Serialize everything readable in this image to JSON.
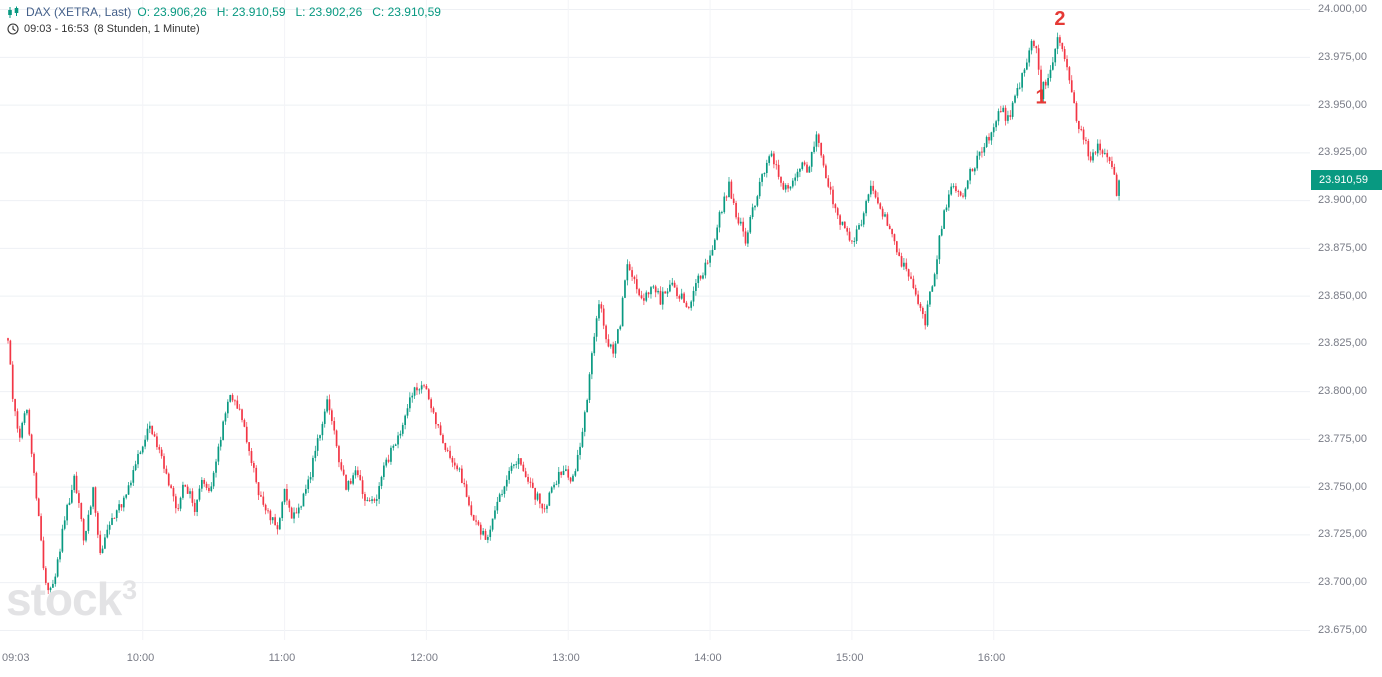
{
  "header": {
    "symbol": "DAX (XETRA, Last)",
    "o_label": "O:",
    "o_value": "23.906,26",
    "h_label": "H:",
    "h_value": "23.910,59",
    "l_label": "L:",
    "l_value": "23.902,26",
    "c_label": "C:",
    "c_value": "23.910,59",
    "session": "09:03 - 16:53",
    "timeframe": "(8 Stunden, 1 Minute)"
  },
  "watermark": {
    "text": "stock",
    "sup": "3"
  },
  "price_badge": {
    "text": "23.910,59",
    "color": "#089981"
  },
  "chart_data": {
    "type": "candlestick",
    "title": "DAX (XETRA, Last)",
    "symbol": "DAX",
    "exchange": "XETRA",
    "interval": "1 Minute",
    "session": "09:03 - 16:53",
    "session_length": "8 Stunden",
    "ohlc": {
      "open": 23906.26,
      "high": 23910.59,
      "low": 23902.26,
      "close": 23910.59
    },
    "last_price": 23910.59,
    "ylim": [
      23670,
      24005
    ],
    "grid": true,
    "up_color": "#089981",
    "down_color": "#f23645",
    "grid_color_h": "#eef0f4",
    "grid_color_v": "#f3f4f7",
    "axis_text_color": "#787b86",
    "y_ticks": [
      {
        "value": 24000,
        "label": "24.000,00"
      },
      {
        "value": 23975,
        "label": "23.975,00"
      },
      {
        "value": 23950,
        "label": "23.950,00"
      },
      {
        "value": 23925,
        "label": "23.925,00"
      },
      {
        "value": 23900,
        "label": "23.900,00"
      },
      {
        "value": 23875,
        "label": "23.875,00"
      },
      {
        "value": 23850,
        "label": "23.850,00"
      },
      {
        "value": 23825,
        "label": "23.825,00"
      },
      {
        "value": 23800,
        "label": "23.800,00"
      },
      {
        "value": 23775,
        "label": "23.775,00"
      },
      {
        "value": 23750,
        "label": "23.750,00"
      },
      {
        "value": 23725,
        "label": "23.725,00"
      },
      {
        "value": 23700,
        "label": "23.700,00"
      },
      {
        "value": 23675,
        "label": "23.675,00"
      }
    ],
    "x_ticks": [
      {
        "t": 0,
        "label": "09:03"
      },
      {
        "t": 57,
        "label": "10:00"
      },
      {
        "t": 117,
        "label": "11:00"
      },
      {
        "t": 177,
        "label": "12:00"
      },
      {
        "t": 237,
        "label": "13:00"
      },
      {
        "t": 297,
        "label": "14:00"
      },
      {
        "t": 357,
        "label": "15:00"
      },
      {
        "t": 417,
        "label": "16:00"
      }
    ],
    "minutes_total": 470,
    "annotations": [
      {
        "label": "1",
        "t": 437,
        "price": 23955,
        "color": "#e53935"
      },
      {
        "label": "2",
        "t": 445,
        "price": 23996,
        "color": "#e53935"
      }
    ],
    "price_path_anchors": [
      [
        0,
        23828
      ],
      [
        2,
        23795
      ],
      [
        5,
        23775
      ],
      [
        8,
        23792
      ],
      [
        12,
        23745
      ],
      [
        15,
        23710
      ],
      [
        17,
        23694
      ],
      [
        20,
        23706
      ],
      [
        24,
        23732
      ],
      [
        28,
        23756
      ],
      [
        32,
        23722
      ],
      [
        36,
        23748
      ],
      [
        39,
        23716
      ],
      [
        43,
        23732
      ],
      [
        48,
        23742
      ],
      [
        53,
        23758
      ],
      [
        57,
        23772
      ],
      [
        60,
        23783
      ],
      [
        64,
        23768
      ],
      [
        68,
        23752
      ],
      [
        71,
        23738
      ],
      [
        75,
        23752
      ],
      [
        79,
        23740
      ],
      [
        82,
        23752
      ],
      [
        86,
        23748
      ],
      [
        90,
        23775
      ],
      [
        94,
        23801
      ],
      [
        98,
        23789
      ],
      [
        102,
        23770
      ],
      [
        106,
        23748
      ],
      [
        110,
        23735
      ],
      [
        114,
        23728
      ],
      [
        117,
        23748
      ],
      [
        120,
        23734
      ],
      [
        124,
        23742
      ],
      [
        128,
        23758
      ],
      [
        132,
        23780
      ],
      [
        135,
        23797
      ],
      [
        139,
        23772
      ],
      [
        143,
        23748
      ],
      [
        147,
        23758
      ],
      [
        151,
        23744
      ],
      [
        155,
        23742
      ],
      [
        159,
        23760
      ],
      [
        163,
        23772
      ],
      [
        167,
        23782
      ],
      [
        171,
        23798
      ],
      [
        175,
        23806
      ],
      [
        178,
        23795
      ],
      [
        182,
        23782
      ],
      [
        186,
        23768
      ],
      [
        190,
        23762
      ],
      [
        194,
        23745
      ],
      [
        198,
        23730
      ],
      [
        203,
        23722
      ],
      [
        207,
        23740
      ],
      [
        211,
        23756
      ],
      [
        215,
        23764
      ],
      [
        219,
        23758
      ],
      [
        223,
        23746
      ],
      [
        227,
        23738
      ],
      [
        231,
        23752
      ],
      [
        235,
        23760
      ],
      [
        238,
        23752
      ],
      [
        241,
        23764
      ],
      [
        244,
        23788
      ],
      [
        247,
        23818
      ],
      [
        250,
        23846
      ],
      [
        253,
        23830
      ],
      [
        256,
        23818
      ],
      [
        259,
        23836
      ],
      [
        262,
        23868
      ],
      [
        265,
        23858
      ],
      [
        268,
        23846
      ],
      [
        272,
        23856
      ],
      [
        276,
        23848
      ],
      [
        280,
        23856
      ],
      [
        284,
        23850
      ],
      [
        288,
        23844
      ],
      [
        292,
        23858
      ],
      [
        297,
        23872
      ],
      [
        301,
        23892
      ],
      [
        305,
        23908
      ],
      [
        308,
        23894
      ],
      [
        312,
        23880
      ],
      [
        316,
        23898
      ],
      [
        320,
        23916
      ],
      [
        323,
        23925
      ],
      [
        326,
        23912
      ],
      [
        330,
        23904
      ],
      [
        334,
        23918
      ],
      [
        338,
        23916
      ],
      [
        342,
        23932
      ],
      [
        345,
        23920
      ],
      [
        349,
        23898
      ],
      [
        353,
        23886
      ],
      [
        357,
        23878
      ],
      [
        361,
        23888
      ],
      [
        365,
        23906
      ],
      [
        369,
        23898
      ],
      [
        373,
        23884
      ],
      [
        377,
        23870
      ],
      [
        381,
        23862
      ],
      [
        385,
        23846
      ],
      [
        388,
        23836
      ],
      [
        391,
        23856
      ],
      [
        394,
        23880
      ],
      [
        397,
        23898
      ],
      [
        400,
        23910
      ],
      [
        403,
        23901
      ],
      [
        406,
        23912
      ],
      [
        410,
        23921
      ],
      [
        414,
        23931
      ],
      [
        417,
        23941
      ],
      [
        420,
        23948
      ],
      [
        423,
        23943
      ],
      [
        426,
        23953
      ],
      [
        430,
        23968
      ],
      [
        433,
        23981
      ],
      [
        435,
        23977
      ],
      [
        437,
        23956
      ],
      [
        440,
        23966
      ],
      [
        444,
        23984
      ],
      [
        446,
        23978
      ],
      [
        449,
        23962
      ],
      [
        452,
        23944
      ],
      [
        455,
        23932
      ],
      [
        458,
        23922
      ],
      [
        461,
        23930
      ],
      [
        464,
        23926
      ],
      [
        466,
        23920
      ],
      [
        468,
        23912
      ],
      [
        469,
        23903
      ],
      [
        470,
        23910.59
      ]
    ]
  }
}
